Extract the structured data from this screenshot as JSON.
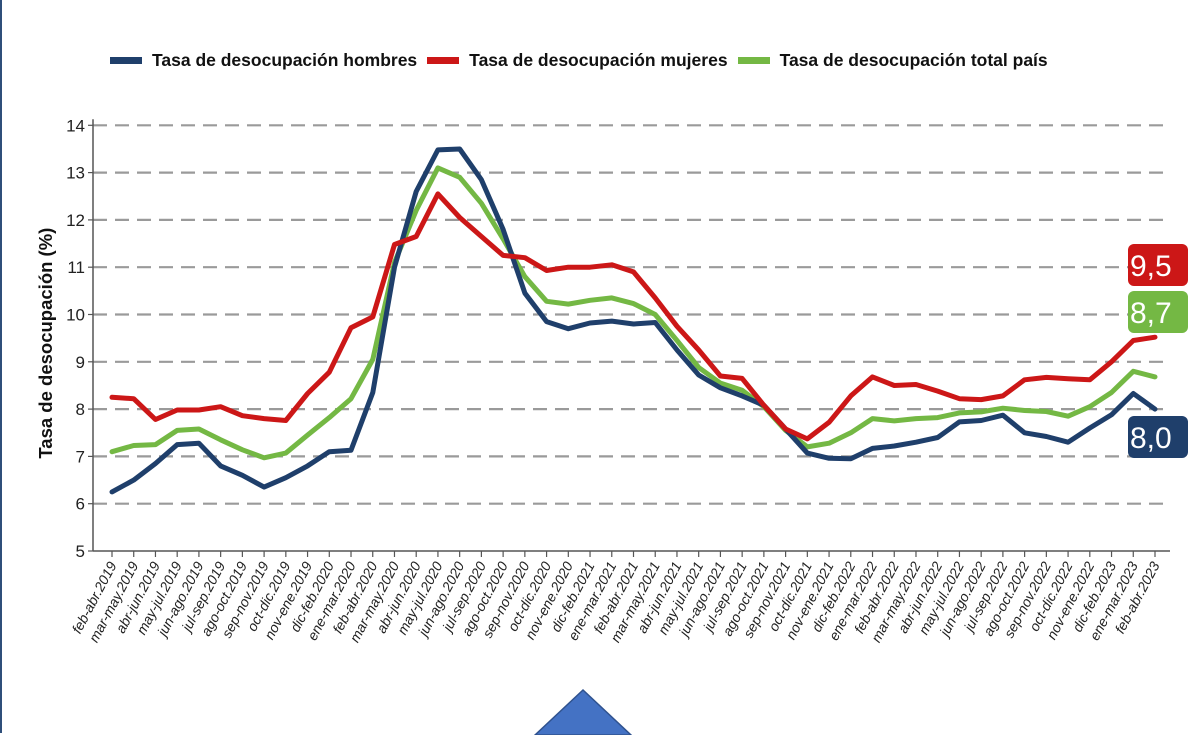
{
  "chart_data": {
    "type": "line",
    "title": "",
    "ylabel": "Tasa de desocupación (%)",
    "xlabel": "",
    "ylim": [
      5,
      14
    ],
    "yticks": [
      5,
      6,
      7,
      8,
      9,
      10,
      11,
      12,
      13,
      14
    ],
    "grid": true,
    "legend_position": "top",
    "categories": [
      "feb-abr.2019",
      "mar-may.2019",
      "abr-jun.2019",
      "may-jul.2019",
      "jun-ago.2019",
      "jul-sep.2019",
      "ago-oct.2019",
      "sep-nov.2019",
      "oct-dic.2019",
      "nov-ene.2019",
      "dic-feb.2020",
      "ene-mar.2020",
      "feb-abr.2020",
      "mar-may.2020",
      "abr-jun.2020",
      "may-jul.2020",
      "jun-ago.2020",
      "jul-sep.2020",
      "ago-oct.2020",
      "sep-nov.2020",
      "oct-dic.2020",
      "nov-ene.2020",
      "dic-feb.2021",
      "ene-mar.2021",
      "feb-abr.2021",
      "mar-may.2021",
      "abr-jun.2021",
      "may-jul.2021",
      "jun-ago.2021",
      "jul-sep.2021",
      "ago-oct.2021",
      "sep-nov.2021",
      "oct-dic.2021",
      "nov-ene.2021",
      "dic-feb.2022",
      "ene-mar.2022",
      "feb-abr.2022",
      "mar-may.2022",
      "abr-jun.2022",
      "may-jul.2022",
      "jun-ago.2022",
      "jul-sep.2022",
      "ago-oct.2022",
      "sep-nov.2022",
      "oct-dic.2022",
      "nov-ene.2022",
      "dic-feb.2023",
      "ene-mar.2023",
      "feb-abr.2023"
    ],
    "series": [
      {
        "name": "Tasa de desocupación hombres",
        "color": "#1f3f6b",
        "values": [
          6.25,
          6.5,
          6.85,
          7.25,
          7.28,
          6.8,
          6.6,
          6.35,
          6.55,
          6.8,
          7.1,
          7.13,
          8.35,
          11.0,
          12.6,
          13.48,
          13.5,
          12.85,
          11.8,
          10.45,
          9.85,
          9.7,
          9.82,
          9.86,
          9.8,
          9.83,
          9.25,
          8.72,
          8.45,
          8.28,
          8.08,
          7.58,
          7.07,
          6.96,
          6.95,
          7.17,
          7.22,
          7.3,
          7.4,
          7.73,
          7.76,
          7.87,
          7.5,
          7.42,
          7.3,
          7.6,
          7.88,
          8.33,
          8.0
        ],
        "end_label": "8,0"
      },
      {
        "name": "Tasa de desocupación mujeres",
        "color": "#cc1717",
        "values": [
          8.25,
          8.22,
          7.78,
          7.98,
          7.98,
          8.05,
          7.86,
          7.8,
          7.76,
          8.33,
          8.78,
          9.72,
          9.95,
          11.48,
          11.65,
          12.55,
          12.05,
          11.65,
          11.25,
          11.2,
          10.93,
          11.0,
          11.0,
          11.05,
          10.9,
          10.35,
          9.75,
          9.25,
          8.7,
          8.65,
          8.08,
          7.58,
          7.37,
          7.72,
          8.28,
          8.68,
          8.5,
          8.52,
          8.38,
          8.22,
          8.2,
          8.28,
          8.62,
          8.67,
          8.64,
          8.62,
          9.0,
          9.45,
          9.52
        ],
        "end_label": "9,5"
      },
      {
        "name": "Tasa de desocupación total país",
        "color": "#74b844",
        "values": [
          7.1,
          7.23,
          7.25,
          7.55,
          7.58,
          7.35,
          7.14,
          6.97,
          7.07,
          7.45,
          7.82,
          8.22,
          9.05,
          11.1,
          12.2,
          13.1,
          12.9,
          12.35,
          11.6,
          10.8,
          10.28,
          10.22,
          10.3,
          10.35,
          10.23,
          10.0,
          9.45,
          8.88,
          8.55,
          8.4,
          8.05,
          7.55,
          7.2,
          7.28,
          7.5,
          7.8,
          7.75,
          7.8,
          7.82,
          7.92,
          7.94,
          8.02,
          7.97,
          7.95,
          7.85,
          8.05,
          8.35,
          8.8,
          8.68
        ],
        "end_label": "8,7"
      }
    ]
  }
}
